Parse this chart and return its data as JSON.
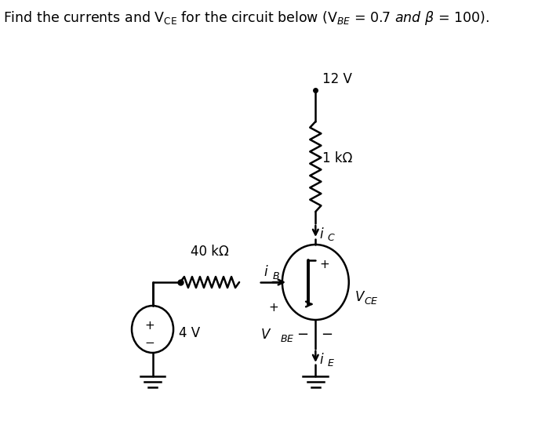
{
  "bg_color": "#ffffff",
  "line_color": "#000000",
  "label_12V": "12 V",
  "label_1k": "1 kΩ",
  "label_40k": "40 kΩ",
  "label_4V": "4 V",
  "figsize": [
    7.0,
    5.6
  ],
  "dpi": 100,
  "title": "Find the currents and V$_{\\mathrm{CE}}$ for the circuit below (V$_{\\mathit{BE}}$ = 0.7 $\\mathit{and}$ $\\beta$ = 100)."
}
